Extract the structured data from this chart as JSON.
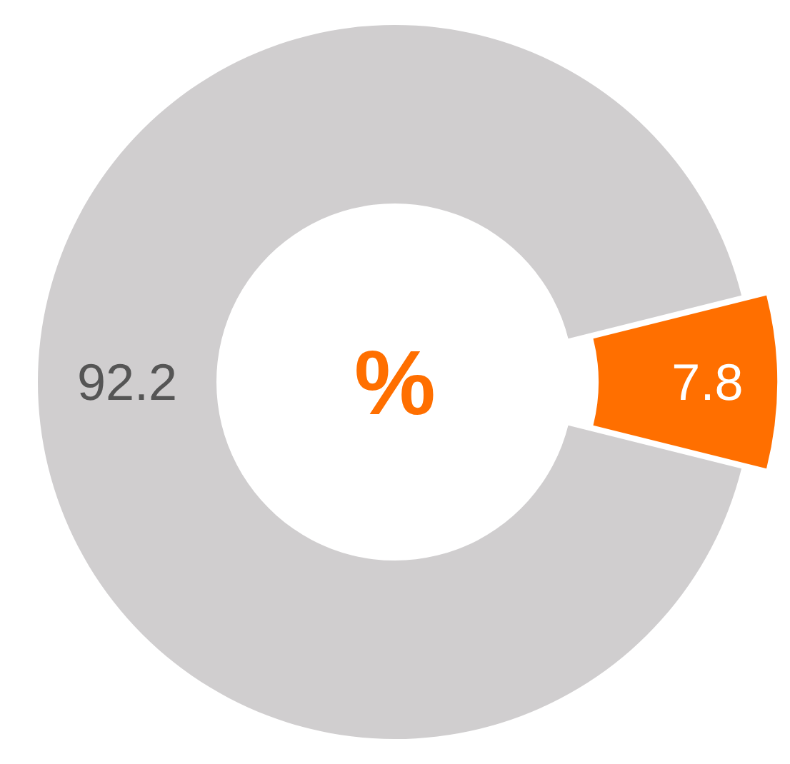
{
  "chart_data": {
    "type": "donut",
    "categories": [
      null,
      null
    ],
    "values": [
      7.8,
      92.2
    ],
    "colors": [
      "#ff6f00",
      "#d0cecf"
    ],
    "data_labels": true,
    "annotations": [
      "%"
    ],
    "legend": false
  }
}
